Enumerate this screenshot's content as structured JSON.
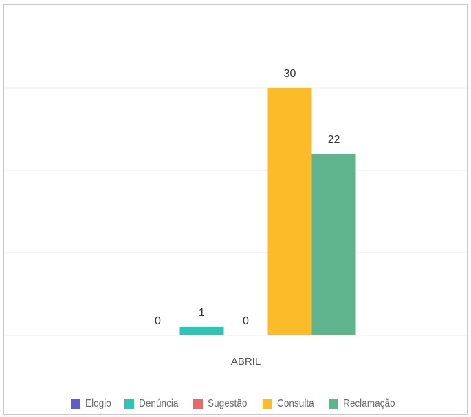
{
  "chart_data": {
    "type": "bar",
    "categories": [
      "ABRIL"
    ],
    "series": [
      {
        "name": "Elogio",
        "values": [
          0
        ],
        "color": "#5b5fc7"
      },
      {
        "name": "Denúncia",
        "values": [
          1
        ],
        "color": "#2ec4b6"
      },
      {
        "name": "Sugestão",
        "values": [
          0
        ],
        "color": "#e66a6a"
      },
      {
        "name": "Consulta",
        "values": [
          30
        ],
        "color": "#fcbc2a"
      },
      {
        "name": "Reclamação",
        "values": [
          22
        ],
        "color": "#5fb38d"
      }
    ],
    "ylim": [
      0,
      40
    ],
    "grid": true,
    "data_labels": true,
    "legend_position": "bottom"
  }
}
